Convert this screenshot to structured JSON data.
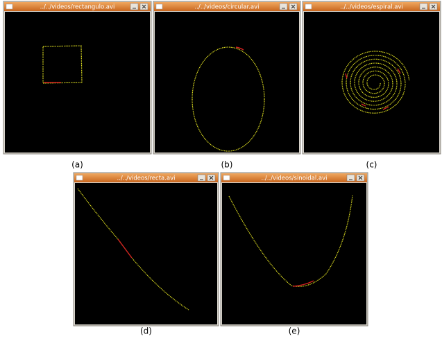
{
  "windows": [
    {
      "title": "../../videos/rectangulo.avi",
      "caption": "(a)"
    },
    {
      "title": "../../videos/circular.avi",
      "caption": "(b)"
    },
    {
      "title": "../../videos/espiral.avi",
      "caption": "(c)"
    },
    {
      "title": "../../videos/recta.avi",
      "caption": "(d)"
    },
    {
      "title": "../../videos/sinoidal.avi",
      "caption": "(e)"
    }
  ]
}
